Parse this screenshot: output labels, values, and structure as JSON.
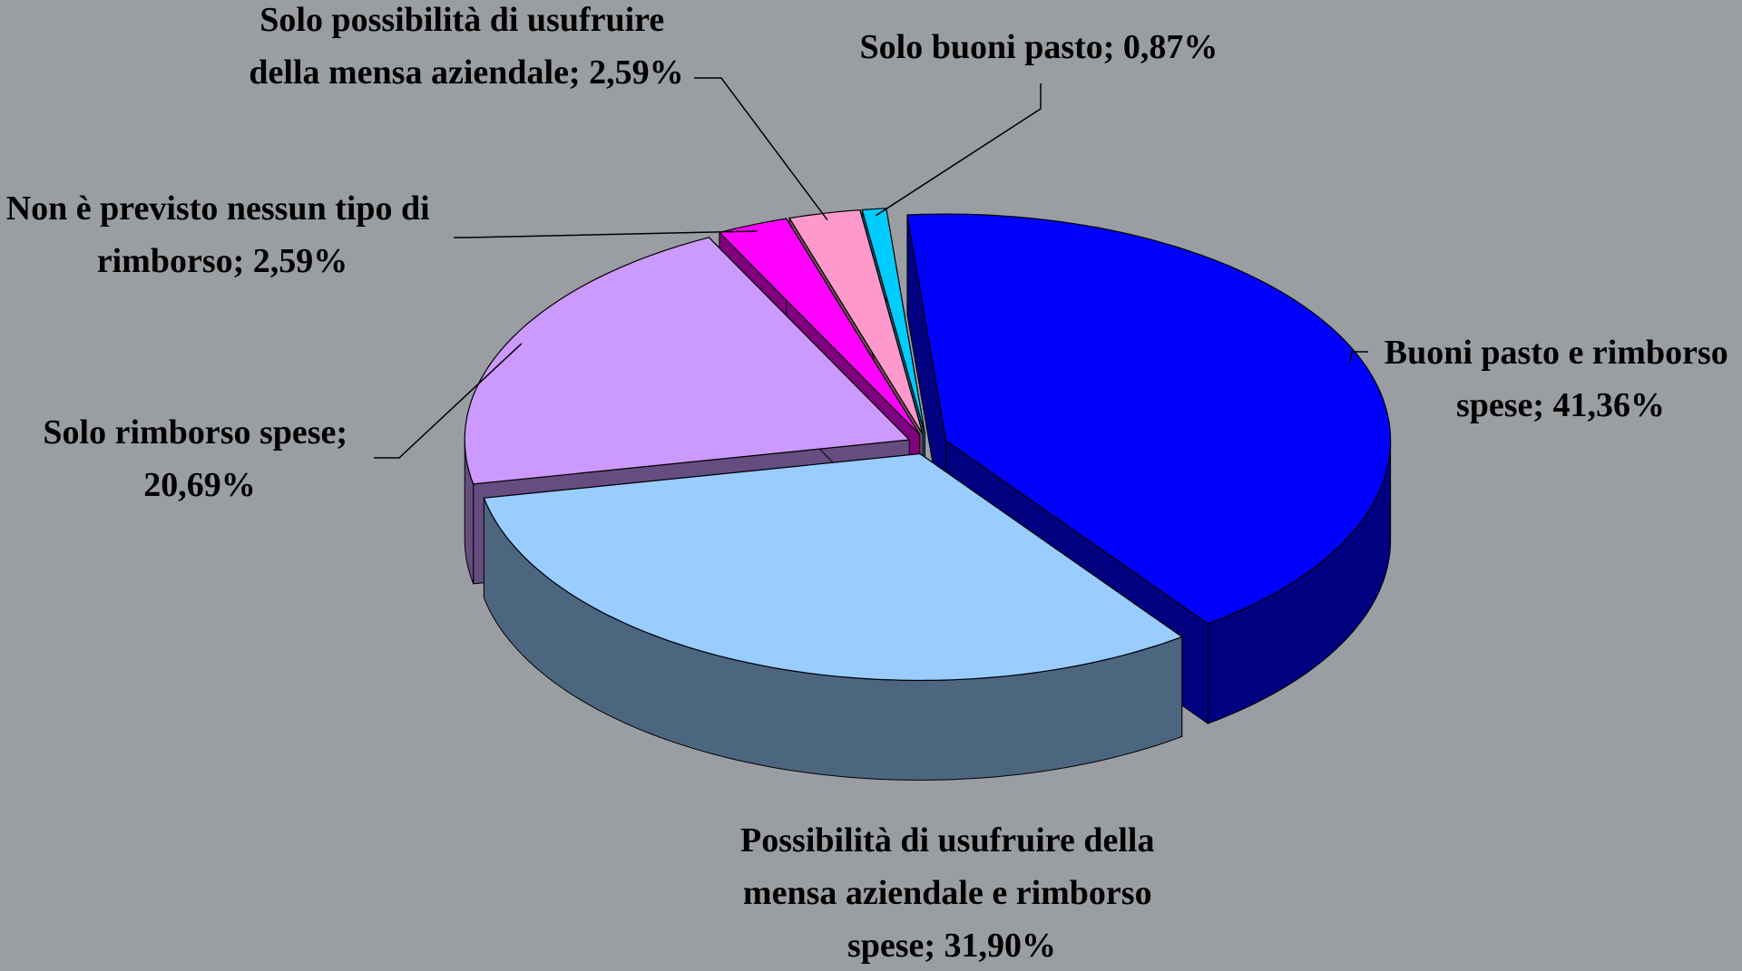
{
  "chart_data": {
    "type": "pie3d",
    "values": [
      41.36,
      31.9,
      20.69,
      2.59,
      2.59,
      0.87
    ],
    "value_labels": [
      "Buoni pasto e rimborso spese; 41,36%",
      "Possibilità di usufruire della mensa aziendale e rimborso spese; 31,90%",
      "Solo rimborso spese; 20,69%",
      "Non è previsto nessun tipo di rimborso; 2,59%",
      "Solo possibilità di usufruire della mensa aziendale; 2,59%",
      "Solo buoni pasto; 0,87%"
    ],
    "colors": [
      "#0000ff",
      "#99ccff",
      "#cc99ff",
      "#ff00ff",
      "#ff99cc",
      "#00ccff"
    ]
  }
}
